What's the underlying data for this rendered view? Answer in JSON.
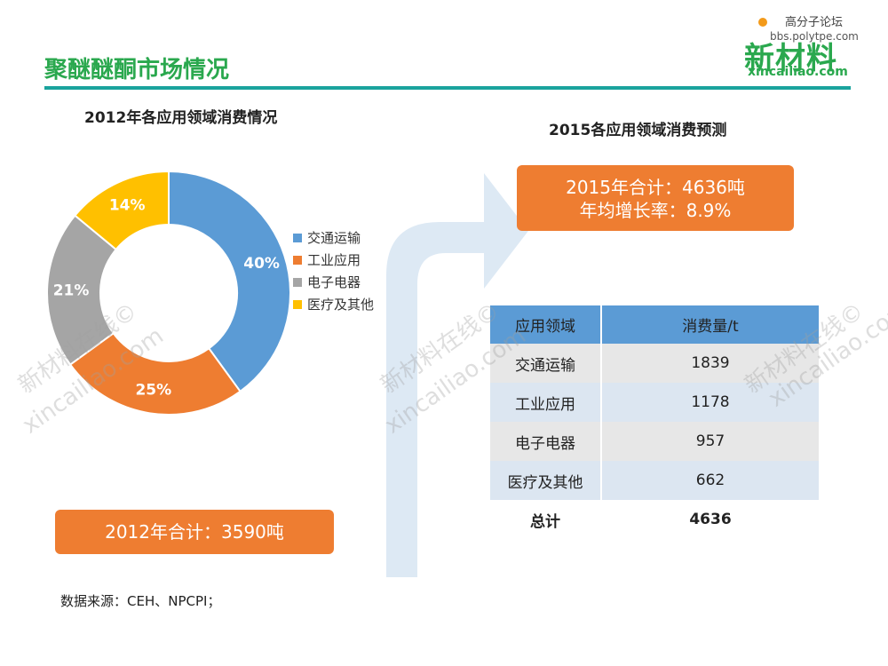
{
  "header": {
    "title": "聚醚醚酮市场情况"
  },
  "logo": {
    "forum": "高分子论坛",
    "bbs": "bbs.polytpe.com",
    "name": "新材料",
    "domain": "xincailiao.com"
  },
  "left_chart": {
    "title": "2012年各应用领域消费情况"
  },
  "right_chart": {
    "title": "2015各应用领域消费预测"
  },
  "total_2012": "2012年合计：3590吨",
  "total_2015": {
    "line1": "2015年合计：4636吨",
    "line2": "年均增长率：8.9%"
  },
  "colors": {
    "blue": "#5b9bd5",
    "orange": "#ee7d31",
    "gray": "#a5a5a5",
    "yellow": "#ffc000"
  },
  "chart_data": [
    {
      "type": "pie",
      "title": "2012年各应用领域消费情况",
      "categories": [
        "交通运输",
        "工业应用",
        "电子电器",
        "医疗及其他"
      ],
      "values": [
        40,
        25,
        21,
        14
      ],
      "labels": [
        "40%",
        "25%",
        "21%",
        "14%"
      ],
      "legend": "right"
    },
    {
      "type": "table",
      "title": "2015各应用领域消费预测",
      "columns": [
        "应用领域",
        "消费量/t"
      ],
      "rows": [
        [
          "交通运输",
          "1839"
        ],
        [
          "工业应用",
          "1178"
        ],
        [
          "电子电器",
          "957"
        ],
        [
          "医疗及其他",
          "662"
        ],
        [
          "总计",
          "4636"
        ]
      ]
    }
  ],
  "source": "数据来源：CEH、NPCPI；",
  "watermarks": [
    "新材料在线©",
    "xincailiao.com"
  ]
}
